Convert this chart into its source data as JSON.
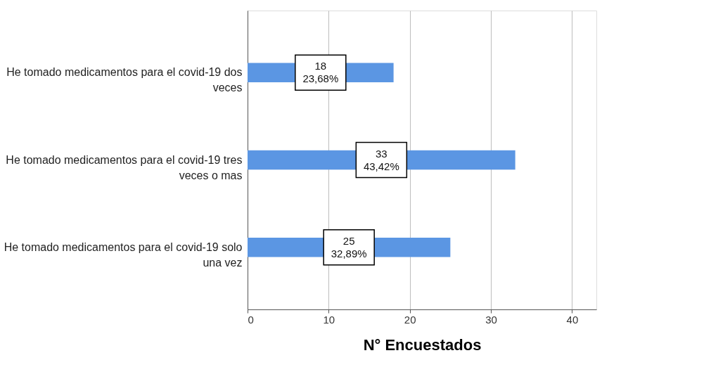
{
  "chart_data": {
    "type": "bar",
    "orientation": "horizontal",
    "categories": [
      "He tomado medicamentos para el covid-19 dos veces",
      "He tomado medicamentos para el covid-19 tres veces o mas",
      "He tomado medicamentos para el covid-19 solo una vez"
    ],
    "values": [
      18,
      33,
      25
    ],
    "color": "#5b96e3",
    "value_labels": [
      "18\n23,68%",
      "33\n43,42%",
      "25\n32,89%"
    ],
    "xlim": [
      0,
      43
    ],
    "xticks": [
      0,
      10,
      20,
      30,
      40
    ],
    "grid": "x",
    "xlabel": "N° Encuestados"
  }
}
